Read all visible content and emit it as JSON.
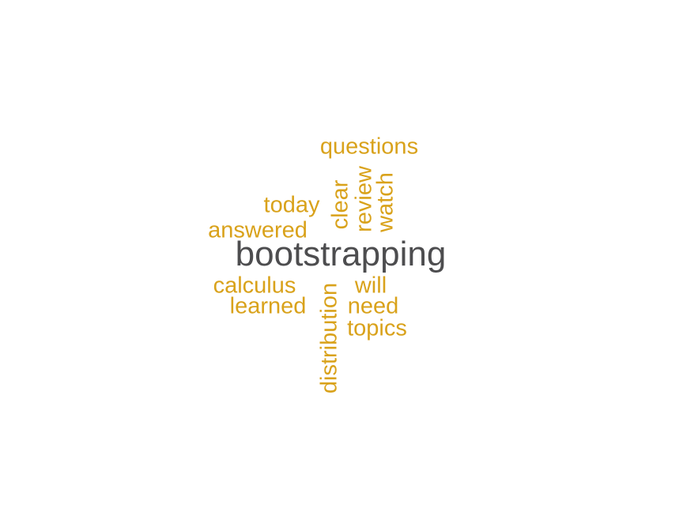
{
  "colors": {
    "primary_word": "#4d4d4f",
    "secondary_word": "#d9a21b"
  },
  "words": {
    "bootstrapping": "bootstrapping",
    "questions": "questions",
    "today": "today",
    "answered": "answered",
    "clear": "clear",
    "review": "review",
    "watch": "watch",
    "calculus": "calculus",
    "learned": "learned",
    "distribution": "distribution",
    "will": "will",
    "need": "need",
    "topics": "topics"
  }
}
